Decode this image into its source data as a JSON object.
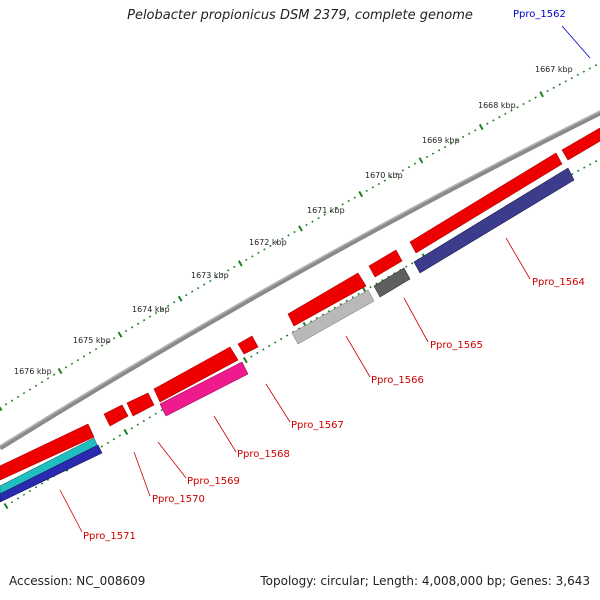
{
  "title": "Pelobacter propionicus DSM 2379, complete genome",
  "footer": {
    "accession": "Accession: NC_008609",
    "summary": "Topology: circular; Length: 4,008,000 bp; Genes: 3,643"
  },
  "colors": {
    "backbone": "#8a8a8a",
    "tick": "#1f7f1f",
    "gene_label": "#cc0000",
    "ppro_1562_label": "#0000cc",
    "cds": "#ee0000",
    "ppro_1564": "#3c3c8c",
    "ppro_1565": "#5f5f5f",
    "ppro_1566": "#b9b9b9",
    "ppro_1568": "#ee1a8e",
    "ppro_1571_cyan": "#1fbfbf",
    "ppro_1571_blue": "#2a2ab0"
  },
  "kbp_ticks": [
    "1667 kbp",
    "1668 kbp",
    "1669 kbp",
    "1670 kbp",
    "1671 kbp",
    "1672 kbp",
    "1673 kbp",
    "1674 kbp",
    "1675 kbp",
    "1676 kbp"
  ],
  "gene_labels": [
    "Ppro_1562",
    "Ppro_1564",
    "Ppro_1565",
    "Ppro_1566",
    "Ppro_1567",
    "Ppro_1568",
    "Ppro_1569",
    "Ppro_1570",
    "Ppro_1571"
  ]
}
